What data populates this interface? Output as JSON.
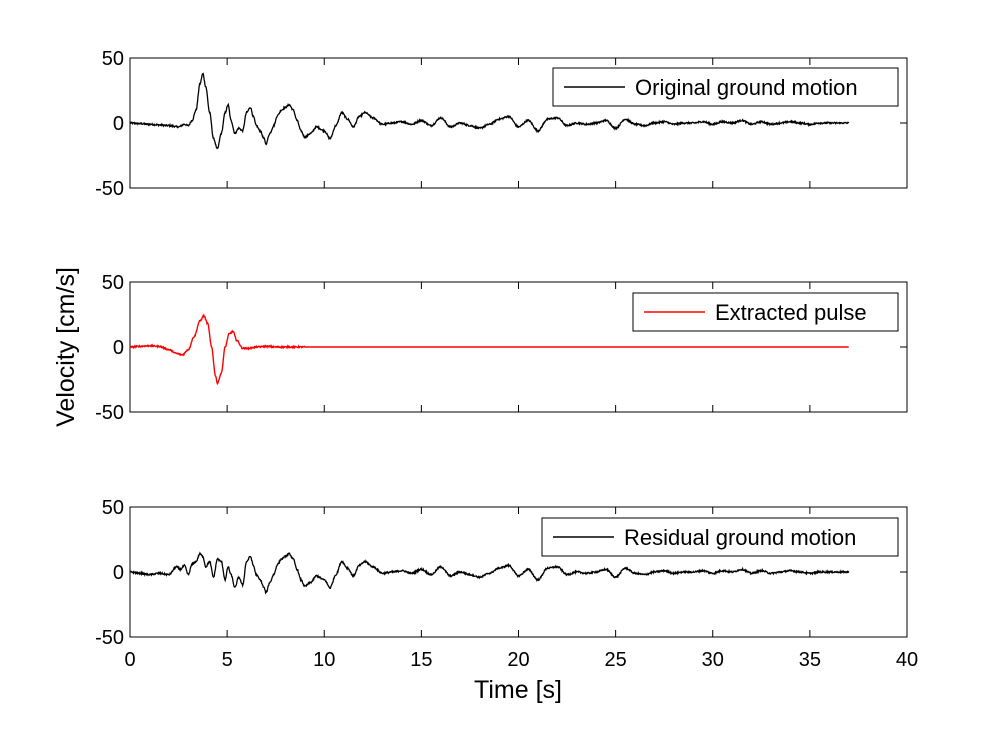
{
  "figure": {
    "ylabel": "Velocity [cm/s]",
    "xlabel": "Time [s]",
    "background": "#ffffff"
  },
  "chart_data": [
    {
      "type": "line",
      "legend": "Original ground motion",
      "legend_position": "top-right",
      "color": "#000000",
      "xlim": [
        0,
        40
      ],
      "ylim": [
        -50,
        50
      ],
      "yticks": [
        50,
        0,
        -50
      ],
      "ytick_labels": [
        "50",
        "0",
        "-50"
      ],
      "grid": false,
      "x": [
        0,
        0.5,
        1,
        1.5,
        2,
        2.5,
        2.8,
        3.0,
        3.2,
        3.4,
        3.6,
        3.75,
        3.9,
        4.1,
        4.3,
        4.5,
        4.7,
        4.9,
        5.05,
        5.2,
        5.4,
        5.6,
        5.8,
        6.0,
        6.2,
        6.35,
        6.5,
        6.7,
        6.9,
        7.0,
        7.2,
        7.4,
        7.6,
        7.8,
        8.0,
        8.2,
        8.4,
        8.6,
        8.8,
        9.0,
        9.3,
        9.6,
        10.0,
        10.3,
        10.6,
        10.9,
        11.2,
        11.5,
        11.8,
        12.1,
        12.5,
        13.0,
        13.5,
        14.0,
        14.5,
        15.0,
        15.5,
        16.0,
        16.5,
        17.0,
        17.5,
        18.0,
        18.5,
        19.0,
        19.5,
        20.0,
        20.5,
        21.0,
        21.5,
        22.0,
        22.5,
        23.0,
        23.5,
        24.0,
        24.5,
        25.0,
        25.5,
        26.0,
        26.5,
        27.0,
        27.5,
        28.0,
        28.5,
        29.0,
        29.5,
        30.0,
        30.5,
        31.0,
        31.5,
        32.0,
        32.5,
        33.0,
        33.5,
        34.0,
        34.5,
        35.0,
        35.5,
        36.0,
        36.5,
        37.0
      ],
      "y": [
        0,
        -0.5,
        -1,
        -1.5,
        -2,
        -3,
        -1,
        -2,
        2,
        10,
        30,
        38,
        28,
        8,
        -12,
        -20,
        -8,
        8,
        14,
        2,
        -8,
        -4,
        -6,
        8,
        12,
        5,
        -2,
        -6,
        -12,
        -16,
        -8,
        -2,
        6,
        10,
        12,
        14,
        10,
        2,
        -6,
        -11,
        -8,
        -3,
        -6,
        -12,
        -2,
        8,
        3,
        -3,
        5,
        8,
        4,
        -1,
        0,
        1,
        -1,
        2,
        -2,
        4,
        -3,
        0,
        -2,
        -4,
        -1,
        3,
        5,
        -3,
        2,
        -6,
        3,
        4,
        -2,
        0,
        -1,
        0,
        2,
        -4,
        3,
        -1,
        -2,
        0,
        1,
        -1,
        0,
        0,
        1,
        -1,
        1,
        0,
        2,
        -1,
        1,
        -1,
        0,
        1,
        0,
        -1,
        0,
        0,
        0,
        0
      ],
      "noise_amplitude": 0.6
    },
    {
      "type": "line",
      "legend": "Extracted pulse",
      "legend_position": "top-right",
      "color": "#ff0000",
      "xlim": [
        0,
        40
      ],
      "ylim": [
        -50,
        50
      ],
      "yticks": [
        50,
        0,
        -50
      ],
      "ytick_labels": [
        "50",
        "0",
        "-50"
      ],
      "grid": false,
      "x": [
        0,
        0.5,
        1.0,
        1.5,
        2.0,
        2.4,
        2.7,
        3.0,
        3.3,
        3.6,
        3.8,
        4.0,
        4.2,
        4.4,
        4.5,
        4.7,
        4.9,
        5.1,
        5.3,
        5.5,
        5.8,
        6.1,
        6.5,
        7.0,
        7.5,
        8.0,
        8.5,
        9.0,
        10.0,
        15.0,
        20.0,
        25.0,
        30.0,
        35.0,
        37.0
      ],
      "y": [
        0,
        0.5,
        1,
        0.5,
        -2,
        -5,
        -6,
        -2,
        8,
        20,
        24,
        18,
        0,
        -22,
        -28,
        -20,
        0,
        10,
        12,
        5,
        -1,
        -1,
        0,
        0.5,
        0,
        0,
        0,
        0,
        0,
        0,
        0,
        0,
        0,
        0,
        0
      ],
      "noise_amplitude": 0.5,
      "noise_until_x": 9
    },
    {
      "type": "line",
      "legend": "Residual ground motion",
      "legend_position": "top-right",
      "color": "#000000",
      "xlim": [
        0,
        40
      ],
      "ylim": [
        -50,
        50
      ],
      "xticks": [
        0,
        5,
        10,
        15,
        20,
        25,
        30,
        35,
        40
      ],
      "xtick_labels": [
        "0",
        "5",
        "10",
        "15",
        "20",
        "25",
        "30",
        "35",
        "40"
      ],
      "yticks": [
        50,
        0,
        -50
      ],
      "ytick_labels": [
        "50",
        "0",
        "-50"
      ],
      "grid": false,
      "x": [
        0,
        0.5,
        1,
        1.5,
        2,
        2.4,
        2.6,
        2.8,
        3.0,
        3.2,
        3.4,
        3.6,
        3.75,
        3.9,
        4.1,
        4.3,
        4.5,
        4.7,
        4.9,
        5.05,
        5.2,
        5.4,
        5.6,
        5.8,
        6.0,
        6.2,
        6.35,
        6.5,
        6.7,
        6.9,
        7.0,
        7.2,
        7.4,
        7.6,
        7.8,
        8.0,
        8.2,
        8.4,
        8.6,
        8.8,
        9.0,
        9.3,
        9.6,
        10.0,
        10.3,
        10.6,
        10.9,
        11.2,
        11.5,
        11.8,
        12.1,
        12.5,
        13.0,
        13.5,
        14.0,
        14.5,
        15.0,
        15.5,
        16.0,
        16.5,
        17.0,
        17.5,
        18.0,
        18.5,
        19.0,
        19.5,
        20.0,
        20.5,
        21.0,
        21.5,
        22.0,
        22.5,
        23.0,
        23.5,
        24.0,
        24.5,
        25.0,
        25.5,
        26.0,
        26.5,
        27.0,
        27.5,
        28.0,
        28.5,
        29.0,
        29.5,
        30.0,
        30.5,
        31.0,
        31.5,
        32.0,
        32.5,
        33.0,
        33.5,
        34.0,
        34.5,
        35.0,
        35.5,
        36.0,
        36.5,
        37.0
      ],
      "y": [
        0,
        -1,
        -2,
        -1,
        -2,
        4,
        2,
        5,
        -2,
        6,
        8,
        14,
        12,
        4,
        8,
        -4,
        10,
        8,
        -6,
        4,
        -2,
        -12,
        -4,
        -10,
        8,
        12,
        5,
        -2,
        -6,
        -12,
        -16,
        -8,
        -2,
        6,
        10,
        12,
        14,
        10,
        2,
        -6,
        -11,
        -8,
        -3,
        -6,
        -12,
        -2,
        8,
        3,
        -3,
        5,
        8,
        4,
        -1,
        0,
        1,
        -1,
        2,
        -2,
        4,
        -3,
        0,
        -2,
        -4,
        -1,
        3,
        5,
        -3,
        2,
        -6,
        3,
        4,
        -2,
        0,
        -1,
        0,
        2,
        -4,
        3,
        -1,
        -2,
        0,
        1,
        -1,
        0,
        0,
        1,
        -1,
        1,
        0,
        2,
        -1,
        1,
        -1,
        0,
        1,
        0,
        -1,
        0,
        0,
        0,
        0
      ],
      "noise_amplitude": 0.6
    }
  ]
}
